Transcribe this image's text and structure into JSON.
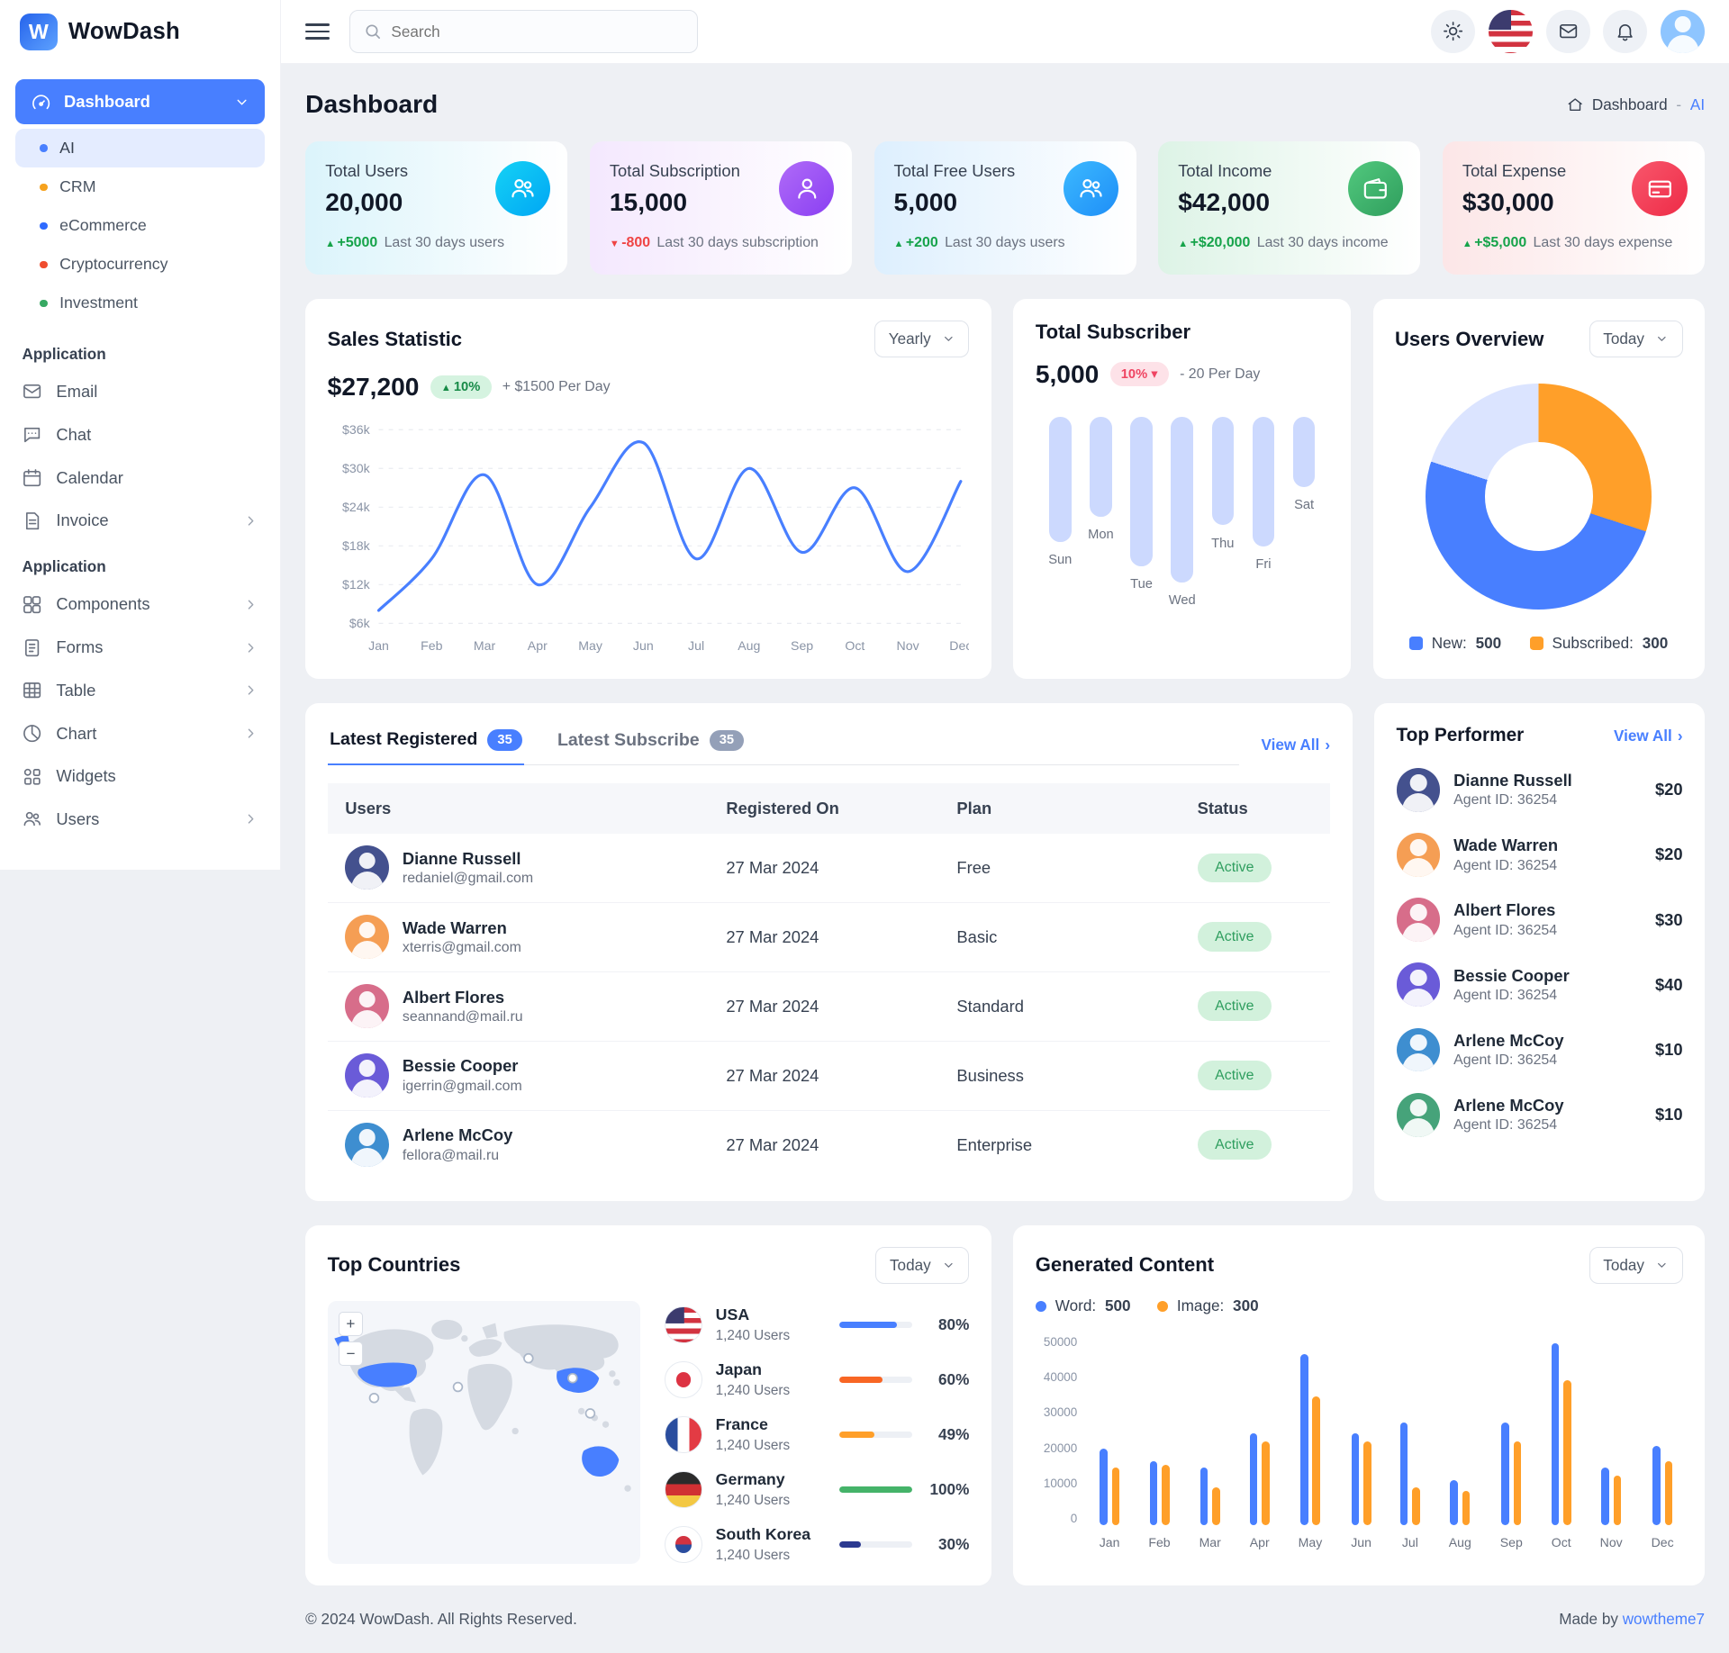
{
  "brand": {
    "name": "WowDash"
  },
  "topbar": {
    "search_placeholder": "Search"
  },
  "icons": {
    "topbar": [
      "menu-icon",
      "search-icon",
      "theme-sun-icon",
      "us-flag-icon",
      "mail-icon",
      "bell-icon",
      "avatar"
    ],
    "stat_cards": [
      "users-group-icon",
      "subscriber-user-icon",
      "free-users-icon",
      "wallet-icon",
      "expense-card-icon"
    ]
  },
  "colors": {
    "primary": "#487fff",
    "success": "#45b369",
    "danger": "#ef4444",
    "warning": "#ff9f29"
  },
  "sidebar": {
    "dashboard_label": "Dashboard",
    "dash_items": [
      {
        "label": "AI"
      },
      {
        "label": "CRM"
      },
      {
        "label": "eCommerce"
      },
      {
        "label": "Cryptocurrency"
      },
      {
        "label": "Investment"
      }
    ],
    "section1_title": "Application",
    "section1_items": [
      {
        "label": "Email"
      },
      {
        "label": "Chat"
      },
      {
        "label": "Calendar"
      },
      {
        "label": "Invoice"
      }
    ],
    "section2_title": "Application",
    "section2_items": [
      {
        "label": "Components"
      },
      {
        "label": "Forms"
      },
      {
        "label": "Table"
      },
      {
        "label": "Chart"
      },
      {
        "label": "Widgets"
      },
      {
        "label": "Users"
      }
    ]
  },
  "page": {
    "title": "Dashboard",
    "breadcrumb": {
      "root": "Dashboard",
      "divider": "-",
      "current": "AI"
    }
  },
  "stats": [
    {
      "label": "Total Users",
      "value": "20,000",
      "delta": "+5000",
      "note": "Last 30 days users",
      "trend": "up",
      "icon": "users-group-icon"
    },
    {
      "label": "Total Subscription",
      "value": "15,000",
      "delta": "-800",
      "note": "Last 30 days subscription",
      "trend": "down",
      "icon": "subscriber-user-icon"
    },
    {
      "label": "Total Free Users",
      "value": "5,000",
      "delta": "+200",
      "note": "Last 30 days users",
      "trend": "up",
      "icon": "free-users-icon"
    },
    {
      "label": "Total Income",
      "value": "$42,000",
      "delta": "+$20,000",
      "note": "Last 30 days income",
      "trend": "up",
      "icon": "wallet-icon"
    },
    {
      "label": "Total Expense",
      "value": "$30,000",
      "delta": "+$5,000",
      "note": "Last 30 days expense",
      "trend": "up",
      "icon": "expense-card-icon"
    }
  ],
  "sales_card": {
    "title": "Sales Statistic",
    "range": "Yearly",
    "amount": "$27,200",
    "badge": "10%",
    "note": "+ $1500 Per Day"
  },
  "subscriber_card": {
    "title": "Total Subscriber",
    "value": "5,000",
    "badge": "10%",
    "note": "- 20 Per Day"
  },
  "users_overview_card": {
    "title": "Users Overview",
    "range": "Today",
    "legend": [
      {
        "label": "New:",
        "value": "500"
      },
      {
        "label": "Subscribed:",
        "value": "300"
      }
    ]
  },
  "latest_card": {
    "tabs": [
      {
        "label": "Latest Registered",
        "badge": "35"
      },
      {
        "label": "Latest Subscribe",
        "badge": "35"
      }
    ],
    "view_all": "View All",
    "headers": [
      "Users",
      "Registered On",
      "Plan",
      "Status"
    ],
    "rows": [
      {
        "name": "Dianne Russell",
        "email": "redaniel@gmail.com",
        "date": "27 Mar 2024",
        "plan": "Free",
        "status": "Active"
      },
      {
        "name": "Wade Warren",
        "email": "xterris@gmail.com",
        "date": "27 Mar 2024",
        "plan": "Basic",
        "status": "Active"
      },
      {
        "name": "Albert Flores",
        "email": "seannand@mail.ru",
        "date": "27 Mar 2024",
        "plan": "Standard",
        "status": "Active"
      },
      {
        "name": "Bessie Cooper",
        "email": "igerrin@gmail.com",
        "date": "27 Mar 2024",
        "plan": "Business",
        "status": "Active"
      },
      {
        "name": "Arlene McCoy",
        "email": "fellora@mail.ru",
        "date": "27 Mar 2024",
        "plan": "Enterprise",
        "status": "Active"
      }
    ]
  },
  "top_performer": {
    "title": "Top Performer",
    "view_all": "View All",
    "items": [
      {
        "name": "Dianne Russell",
        "agent": "Agent ID: 36254",
        "amount": "$20"
      },
      {
        "name": "Wade Warren",
        "agent": "Agent ID: 36254",
        "amount": "$20"
      },
      {
        "name": "Albert Flores",
        "agent": "Agent ID: 36254",
        "amount": "$30"
      },
      {
        "name": "Bessie Cooper",
        "agent": "Agent ID: 36254",
        "amount": "$40"
      },
      {
        "name": "Arlene McCoy",
        "agent": "Agent ID: 36254",
        "amount": "$10"
      },
      {
        "name": "Arlene McCoy",
        "agent": "Agent ID: 36254",
        "amount": "$10"
      }
    ]
  },
  "top_countries": {
    "title": "Top Countries",
    "range": "Today",
    "items": [
      {
        "country": "USA",
        "users": "1,240 Users",
        "pct": "80%",
        "flag": "usa",
        "color": "#487fff"
      },
      {
        "country": "Japan",
        "users": "1,240 Users",
        "pct": "60%",
        "flag": "japan",
        "color": "#f86624"
      },
      {
        "country": "France",
        "users": "1,240 Users",
        "pct": "49%",
        "flag": "france",
        "color": "#ff9f29"
      },
      {
        "country": "Germany",
        "users": "1,240 Users",
        "pct": "100%",
        "flag": "germany",
        "color": "#45b369"
      },
      {
        "country": "South Korea",
        "users": "1,240 Users",
        "pct": "30%",
        "flag": "southkorea",
        "color": "#2b3990"
      }
    ]
  },
  "generated_card": {
    "title": "Generated Content",
    "range": "Today",
    "legend": [
      {
        "label": "Word:",
        "value": "500"
      },
      {
        "label": "Image:",
        "value": "300"
      }
    ]
  },
  "footer": {
    "copyright": "© 2024 WowDash. All Rights Reserved.",
    "made_by": "Made by",
    "made_by_link": "wowtheme7"
  },
  "chart_data": [
    {
      "id": "sales",
      "type": "line",
      "title": "Sales Statistic",
      "x": [
        "Jan",
        "Feb",
        "Mar",
        "Apr",
        "May",
        "Jun",
        "Jul",
        "Aug",
        "Sep",
        "Oct",
        "Nov",
        "Dec"
      ],
      "values": [
        8000,
        16000,
        29000,
        12000,
        24000,
        34000,
        16000,
        30000,
        17000,
        27000,
        14000,
        28000
      ],
      "ylim": [
        6000,
        36000
      ],
      "yticks": [
        "$6k",
        "$12k",
        "$18k",
        "$24k",
        "$30k",
        "$36k"
      ],
      "color": "#487fff",
      "grid": "dashed-horizontal",
      "legend_position": "none"
    },
    {
      "id": "subscriber",
      "type": "bar",
      "title": "Total Subscriber",
      "categories": [
        "Sun",
        "Mon",
        "Tue",
        "Wed",
        "Thu",
        "Fri",
        "Sat"
      ],
      "values": [
        680,
        540,
        810,
        900,
        590,
        700,
        380
      ],
      "ylim": [
        0,
        900
      ],
      "color": "#ccd9fe",
      "grid": "off"
    },
    {
      "id": "users_overview",
      "type": "pie",
      "title": "Users Overview",
      "donut": true,
      "slices": [
        {
          "label": "Subscribed",
          "value": 300,
          "color": "#ff9f29"
        },
        {
          "label": "New",
          "value": 500,
          "color": "#487fff"
        },
        {
          "label": "",
          "value": 200,
          "color": "#dbe4ff"
        }
      ],
      "legend_position": "bottom"
    },
    {
      "id": "generated",
      "type": "bar",
      "title": "Generated Content",
      "categories": [
        "Jan",
        "Feb",
        "Mar",
        "Apr",
        "May",
        "Jun",
        "Jul",
        "Aug",
        "Sep",
        "Oct",
        "Nov",
        "Dec"
      ],
      "series": [
        {
          "name": "Word",
          "color": "#487fff",
          "values": [
            20000,
            17000,
            15000,
            24000,
            45000,
            24000,
            27000,
            12000,
            27000,
            48000,
            15000,
            21000
          ]
        },
        {
          "name": "Image",
          "color": "#ff9f29",
          "values": [
            15000,
            16000,
            10000,
            22000,
            34000,
            22000,
            10000,
            9000,
            22000,
            38000,
            13000,
            17000
          ]
        }
      ],
      "ylim": [
        0,
        50000
      ],
      "yticks": [
        "0",
        "10000",
        "20000",
        "30000",
        "40000",
        "50000"
      ],
      "grid": "off",
      "legend_position": "top"
    }
  ]
}
